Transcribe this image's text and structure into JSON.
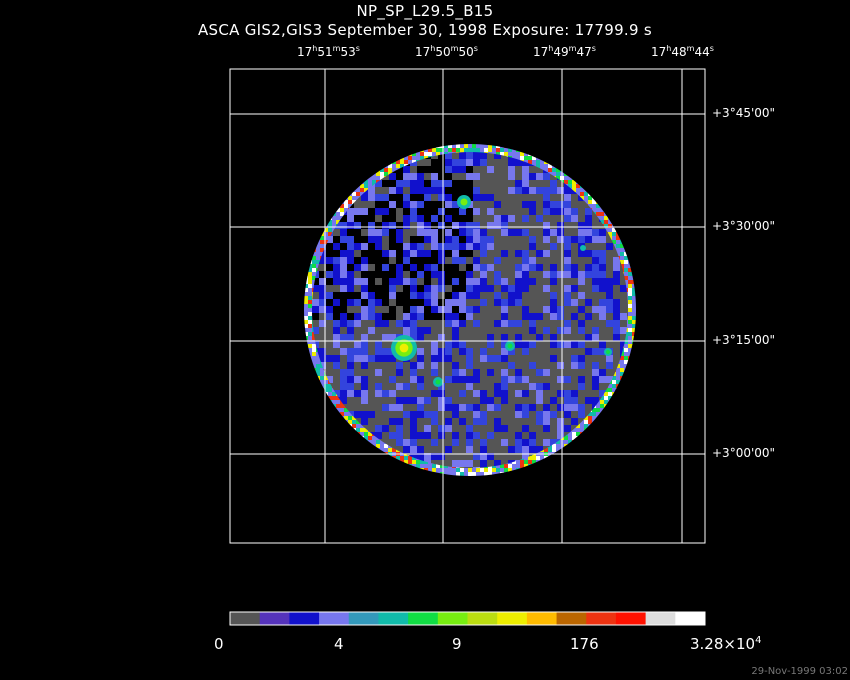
{
  "header": {
    "title": "NP_SP_L29.5_B15",
    "subtitle": "ASCA GIS2,GIS3 September 30, 1998 Exposure: 17799.9 s"
  },
  "ra_ticks": [
    {
      "h": "17",
      "m": "51",
      "s": "53"
    },
    {
      "h": "17",
      "m": "50",
      "s": "50"
    },
    {
      "h": "17",
      "m": "49",
      "s": "47"
    },
    {
      "h": "17",
      "m": "48",
      "s": "44"
    }
  ],
  "dec_ticks": [
    "+3°45'00\"",
    "+3°30'00\"",
    "+3°15'00\"",
    "+3°00'00\""
  ],
  "colorbar": {
    "colors": [
      "#555555",
      "#5533bb",
      "#1111cc",
      "#7777ee",
      "#3399bb",
      "#11bbaa",
      "#11dd44",
      "#77ee11",
      "#bbdd11",
      "#eeee00",
      "#ffbb00",
      "#bb6600",
      "#ee3311",
      "#ff1100",
      "#dddddd",
      "#ffffff"
    ],
    "labels": [
      {
        "text": "0"
      },
      {
        "text": "4"
      },
      {
        "text": "9"
      },
      {
        "text": "176"
      },
      {
        "text": "3.28×10",
        "exp": "4"
      }
    ]
  },
  "timestamp": "29-Nov-1999 03:02"
}
